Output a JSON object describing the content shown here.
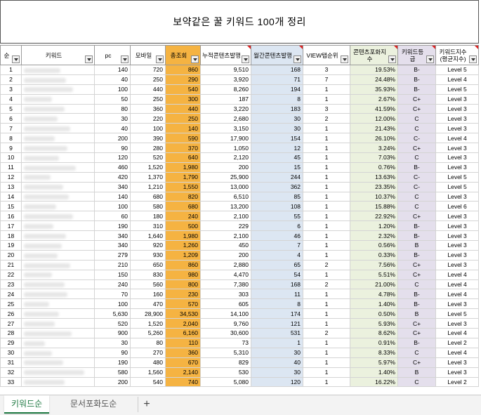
{
  "title": "보약같은 꿀 키워드 100개 정리",
  "headers": {
    "no": "순",
    "keyword": "키워드",
    "pc": "pc",
    "mobile": "모바일",
    "total": "총조회",
    "cumulative": "누적콘텐츠발행",
    "monthly": "월간콘텐츠발행",
    "viewtab": "VIEW탭순위",
    "saturation": "콘텐츠포화지수",
    "grade": "키워드등급",
    "index_line1": "키워드지수",
    "index_line2": "(평균지수)"
  },
  "rows": [
    {
      "no": "1",
      "pc": "140",
      "mobile": "720",
      "total": "860",
      "cum": "9,510",
      "mon": "168",
      "view": "3",
      "sat": "19.53%",
      "grade": "B-",
      "level": "Level 5"
    },
    {
      "no": "2",
      "pc": "40",
      "mobile": "250",
      "total": "290",
      "cum": "3,920",
      "mon": "71",
      "view": "7",
      "sat": "24.48%",
      "grade": "B-",
      "level": "Level 4"
    },
    {
      "no": "3",
      "pc": "100",
      "mobile": "440",
      "total": "540",
      "cum": "8,260",
      "mon": "194",
      "view": "1",
      "sat": "35.93%",
      "grade": "B-",
      "level": "Level 5"
    },
    {
      "no": "4",
      "pc": "50",
      "mobile": "250",
      "total": "300",
      "cum": "187",
      "mon": "8",
      "view": "1",
      "sat": "2.67%",
      "grade": "C+",
      "level": "Level 3"
    },
    {
      "no": "5",
      "pc": "80",
      "mobile": "360",
      "total": "440",
      "cum": "3,220",
      "mon": "183",
      "view": "3",
      "sat": "41.59%",
      "grade": "C+",
      "level": "Level 3"
    },
    {
      "no": "6",
      "pc": "30",
      "mobile": "220",
      "total": "250",
      "cum": "2,680",
      "mon": "30",
      "view": "2",
      "sat": "12.00%",
      "grade": "C",
      "level": "Level 3"
    },
    {
      "no": "7",
      "pc": "40",
      "mobile": "100",
      "total": "140",
      "cum": "3,150",
      "mon": "30",
      "view": "1",
      "sat": "21.43%",
      "grade": "C",
      "level": "Level 3"
    },
    {
      "no": "8",
      "pc": "200",
      "mobile": "390",
      "total": "590",
      "cum": "17,900",
      "mon": "154",
      "view": "1",
      "sat": "26.10%",
      "grade": "C-",
      "level": "Level 4"
    },
    {
      "no": "9",
      "pc": "90",
      "mobile": "280",
      "total": "370",
      "cum": "1,050",
      "mon": "12",
      "view": "1",
      "sat": "3.24%",
      "grade": "C+",
      "level": "Level 3"
    },
    {
      "no": "10",
      "pc": "120",
      "mobile": "520",
      "total": "640",
      "cum": "2,120",
      "mon": "45",
      "view": "1",
      "sat": "7.03%",
      "grade": "C",
      "level": "Level 3"
    },
    {
      "no": "11",
      "pc": "460",
      "mobile": "1,520",
      "total": "1,980",
      "cum": "200",
      "mon": "15",
      "view": "1",
      "sat": "0.76%",
      "grade": "B-",
      "level": "Level 3"
    },
    {
      "no": "12",
      "pc": "420",
      "mobile": "1,370",
      "total": "1,790",
      "cum": "25,900",
      "mon": "244",
      "view": "1",
      "sat": "13.63%",
      "grade": "C-",
      "level": "Level 5"
    },
    {
      "no": "13",
      "pc": "340",
      "mobile": "1,210",
      "total": "1,550",
      "cum": "13,000",
      "mon": "362",
      "view": "1",
      "sat": "23.35%",
      "grade": "C-",
      "level": "Level 5"
    },
    {
      "no": "14",
      "pc": "140",
      "mobile": "680",
      "total": "820",
      "cum": "6,510",
      "mon": "85",
      "view": "1",
      "sat": "10.37%",
      "grade": "C",
      "level": "Level 3"
    },
    {
      "no": "15",
      "pc": "100",
      "mobile": "580",
      "total": "680",
      "cum": "13,200",
      "mon": "108",
      "view": "1",
      "sat": "15.88%",
      "grade": "C",
      "level": "Level 6"
    },
    {
      "no": "16",
      "pc": "60",
      "mobile": "180",
      "total": "240",
      "cum": "2,100",
      "mon": "55",
      "view": "1",
      "sat": "22.92%",
      "grade": "C+",
      "level": "Level 3"
    },
    {
      "no": "17",
      "pc": "190",
      "mobile": "310",
      "total": "500",
      "cum": "229",
      "mon": "6",
      "view": "1",
      "sat": "1.20%",
      "grade": "B-",
      "level": "Level 3"
    },
    {
      "no": "18",
      "pc": "340",
      "mobile": "1,640",
      "total": "1,980",
      "cum": "2,100",
      "mon": "46",
      "view": "1",
      "sat": "2.32%",
      "grade": "B-",
      "level": "Level 3"
    },
    {
      "no": "19",
      "pc": "340",
      "mobile": "920",
      "total": "1,260",
      "cum": "450",
      "mon": "7",
      "view": "1",
      "sat": "0.56%",
      "grade": "B",
      "level": "Level 3"
    },
    {
      "no": "20",
      "pc": "279",
      "mobile": "930",
      "total": "1,209",
      "cum": "200",
      "mon": "4",
      "view": "1",
      "sat": "0.33%",
      "grade": "B-",
      "level": "Level 3"
    },
    {
      "no": "21",
      "pc": "210",
      "mobile": "650",
      "total": "860",
      "cum": "2,880",
      "mon": "65",
      "view": "2",
      "sat": "7.56%",
      "grade": "C+",
      "level": "Level 3"
    },
    {
      "no": "22",
      "pc": "150",
      "mobile": "830",
      "total": "980",
      "cum": "4,470",
      "mon": "54",
      "view": "1",
      "sat": "5.51%",
      "grade": "C+",
      "level": "Level 4"
    },
    {
      "no": "23",
      "pc": "240",
      "mobile": "560",
      "total": "800",
      "cum": "7,380",
      "mon": "168",
      "view": "2",
      "sat": "21.00%",
      "grade": "C",
      "level": "Level 4"
    },
    {
      "no": "24",
      "pc": "70",
      "mobile": "160",
      "total": "230",
      "cum": "303",
      "mon": "11",
      "view": "1",
      "sat": "4.78%",
      "grade": "B-",
      "level": "Level 4"
    },
    {
      "no": "25",
      "pc": "100",
      "mobile": "470",
      "total": "570",
      "cum": "605",
      "mon": "8",
      "view": "1",
      "sat": "1.40%",
      "grade": "B-",
      "level": "Level 3"
    },
    {
      "no": "26",
      "pc": "5,630",
      "mobile": "28,900",
      "total": "34,530",
      "cum": "14,100",
      "mon": "174",
      "view": "1",
      "sat": "0.50%",
      "grade": "B",
      "level": "Level 5"
    },
    {
      "no": "27",
      "pc": "520",
      "mobile": "1,520",
      "total": "2,040",
      "cum": "9,760",
      "mon": "121",
      "view": "1",
      "sat": "5.93%",
      "grade": "C+",
      "level": "Level 3"
    },
    {
      "no": "28",
      "pc": "900",
      "mobile": "5,260",
      "total": "6,160",
      "cum": "30,600",
      "mon": "531",
      "view": "2",
      "sat": "8.62%",
      "grade": "C+",
      "level": "Level 4"
    },
    {
      "no": "29",
      "pc": "30",
      "mobile": "80",
      "total": "110",
      "cum": "73",
      "mon": "1",
      "view": "1",
      "sat": "0.91%",
      "grade": "B-",
      "level": "Level 2"
    },
    {
      "no": "30",
      "pc": "90",
      "mobile": "270",
      "total": "360",
      "cum": "5,310",
      "mon": "30",
      "view": "1",
      "sat": "8.33%",
      "grade": "C",
      "level": "Level 4"
    },
    {
      "no": "31",
      "pc": "190",
      "mobile": "480",
      "total": "670",
      "cum": "829",
      "mon": "40",
      "view": "1",
      "sat": "5.97%",
      "grade": "C+",
      "level": "Level 3"
    },
    {
      "no": "32",
      "pc": "580",
      "mobile": "1,560",
      "total": "2,140",
      "cum": "530",
      "mon": "30",
      "view": "1",
      "sat": "1.40%",
      "grade": "B",
      "level": "Level 3"
    },
    {
      "no": "33",
      "pc": "200",
      "mobile": "540",
      "total": "740",
      "cum": "5,080",
      "mon": "120",
      "view": "1",
      "sat": "16.22%",
      "grade": "C",
      "level": "Level 2"
    }
  ],
  "tabs": {
    "active": "키워드순",
    "second": "문서포화도순",
    "add": "+"
  }
}
